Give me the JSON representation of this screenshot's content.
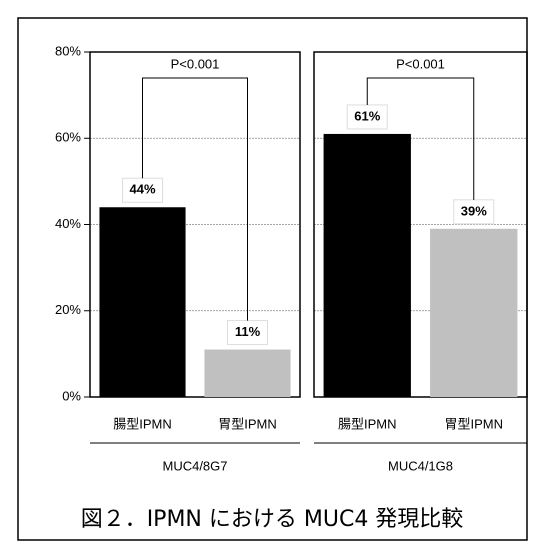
{
  "chart_data": [
    {
      "type": "bar",
      "categories": [
        "腸型IPMN",
        "胃型IPMN"
      ],
      "values": [
        44,
        11
      ],
      "value_labels": [
        "44%",
        "11%"
      ],
      "colors": [
        "#000000",
        "#c0c0c0"
      ],
      "annotation": "P<0.001",
      "group_label": "MUC4/8G7",
      "ylim": [
        0,
        80
      ],
      "yticks": [
        {
          "value": 0,
          "label": "0%"
        },
        {
          "value": 20,
          "label": "20%"
        },
        {
          "value": 40,
          "label": "40%"
        },
        {
          "value": 60,
          "label": "60%"
        },
        {
          "value": 80,
          "label": "80%"
        }
      ],
      "grid": true
    },
    {
      "type": "bar",
      "categories": [
        "腸型IPMN",
        "胃型IPMN"
      ],
      "values": [
        61,
        39
      ],
      "value_labels": [
        "61%",
        "39%"
      ],
      "colors": [
        "#000000",
        "#c0c0c0"
      ],
      "annotation": "P<0.001",
      "group_label": "MUC4/1G8",
      "ylim": [
        0,
        80
      ],
      "yticks": [
        20,
        40,
        60,
        80
      ],
      "grid": true
    }
  ],
  "caption": "図２．IPMN における MUC4 発現比較"
}
